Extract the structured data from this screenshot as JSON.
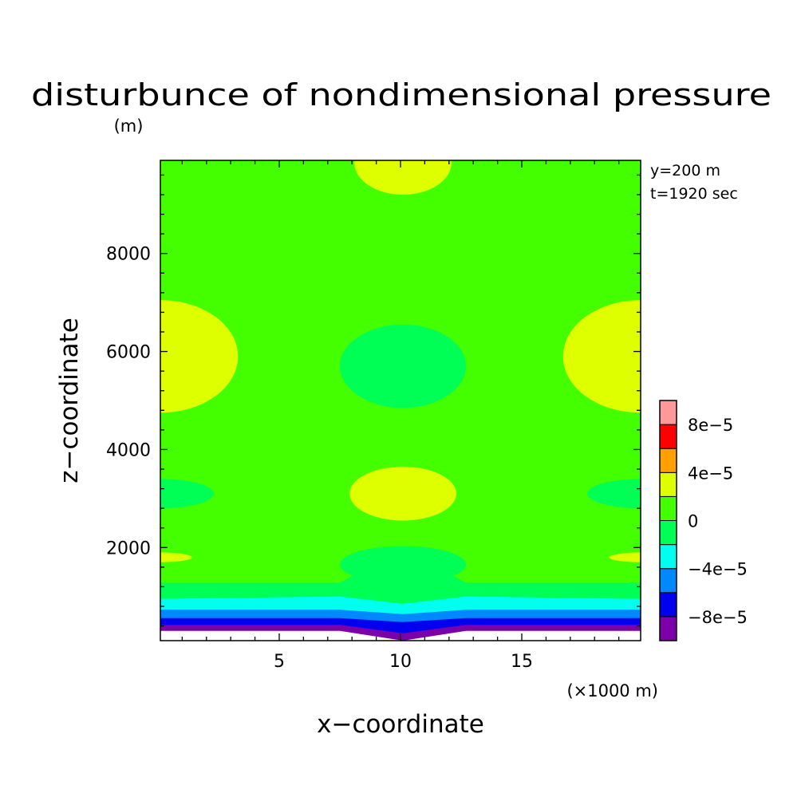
{
  "chart_data": {
    "type": "contour",
    "title": "disturbunce of nondimensional pressure",
    "unit_label": "(m)",
    "xlabel": "x−coordinate",
    "ylabel": "z−coordinate",
    "x_unit_label": "(×1000 m)",
    "annotations": [
      "y=200 m",
      "t=1920 sec"
    ],
    "xlim": [
      0.1,
      19.9
    ],
    "ylim": [
      100,
      9900
    ],
    "x_ticks": [
      5,
      10,
      15
    ],
    "x_tick_labels": [
      "5",
      "10",
      "15"
    ],
    "y_ticks": [
      2000,
      4000,
      6000,
      8000
    ],
    "y_tick_labels": [
      "2000",
      "4000",
      "6000",
      "8000"
    ],
    "x_minor_step": 1,
    "y_minor_step": 400,
    "background_level_color": "#44ff00",
    "colorbar": {
      "boundaries": [
        -0.0001,
        -8e-05,
        -6e-05,
        -4e-05,
        -2e-05,
        0,
        2e-05,
        4e-05,
        6e-05,
        8e-05,
        0.0001
      ],
      "colors": [
        "#7c00aa",
        "#0000ee",
        "#0088ff",
        "#00ffee",
        "#00ff55",
        "#44ff00",
        "#ddff00",
        "#ffa000",
        "#ff0000",
        "#ff9999"
      ],
      "tick_values": [
        -8e-05,
        -4e-05,
        0,
        4e-05,
        8e-05
      ],
      "tick_labels": [
        "−8e−5",
        "−4e−5",
        "0",
        "4e−5",
        "8e−5"
      ]
    },
    "regions": [
      {
        "level": "2e-5..4e-5",
        "color": "#ddff00",
        "shape": "ellipse",
        "x": 10.1,
        "z": 9850,
        "rx": 2.0,
        "rz": 650
      },
      {
        "level": "2e-5..4e-5",
        "color": "#ddff00",
        "shape": "ellipse",
        "x": 0.1,
        "z": 5900,
        "rx": 3.2,
        "rz": 1150
      },
      {
        "level": "2e-5..4e-5",
        "color": "#ddff00",
        "shape": "ellipse",
        "x": 19.9,
        "z": 5900,
        "rx": 3.2,
        "rz": 1150
      },
      {
        "level": "-2e-5..0",
        "color": "#00ff55",
        "shape": "ellipse",
        "x": 10.1,
        "z": 5700,
        "rx": 2.6,
        "rz": 850
      },
      {
        "level": "2e-5..4e-5",
        "color": "#ddff00",
        "shape": "ellipse",
        "x": 10.1,
        "z": 3100,
        "rx": 2.2,
        "rz": 550
      },
      {
        "level": "-2e-5..0",
        "color": "#00ff55",
        "shape": "ellipse",
        "x": 0.1,
        "z": 3100,
        "rx": 2.2,
        "rz": 300
      },
      {
        "level": "-2e-5..0",
        "color": "#00ff55",
        "shape": "ellipse",
        "x": 19.9,
        "z": 3100,
        "rx": 2.2,
        "rz": 300
      },
      {
        "level": "2e-5..4e-5",
        "color": "#ddff00",
        "shape": "ellipse",
        "x": 0.1,
        "z": 1800,
        "rx": 1.3,
        "rz": 100
      },
      {
        "level": "2e-5..4e-5",
        "color": "#ddff00",
        "shape": "ellipse",
        "x": 19.9,
        "z": 1800,
        "rx": 1.3,
        "rz": 100
      }
    ],
    "bottom_layers": {
      "x": [
        0.1,
        7.5,
        10.1,
        12.7,
        19.9
      ],
      "layers": [
        {
          "level": "-2e-5..0",
          "color": "#00ff55",
          "top": [
            1280,
            1280,
            2000,
            1280,
            1280
          ]
        },
        {
          "level": "-4e-5..-2e-5",
          "color": "#00ffee",
          "top": [
            950,
            1000,
            850,
            1000,
            950
          ]
        },
        {
          "level": "-6e-5..-4e-5",
          "color": "#0088ff",
          "top": [
            730,
            730,
            640,
            730,
            730
          ]
        },
        {
          "level": "-8e-5..-6e-5",
          "color": "#0000ee",
          "top": [
            560,
            560,
            480,
            560,
            560
          ]
        },
        {
          "level": "-1e-4..-8e-5",
          "color": "#7c00aa",
          "top": [
            420,
            420,
            250,
            420,
            420
          ]
        },
        {
          "level": "no data",
          "color": "#ffffff",
          "top": [
            300,
            300,
            100,
            300,
            300
          ]
        }
      ]
    }
  }
}
